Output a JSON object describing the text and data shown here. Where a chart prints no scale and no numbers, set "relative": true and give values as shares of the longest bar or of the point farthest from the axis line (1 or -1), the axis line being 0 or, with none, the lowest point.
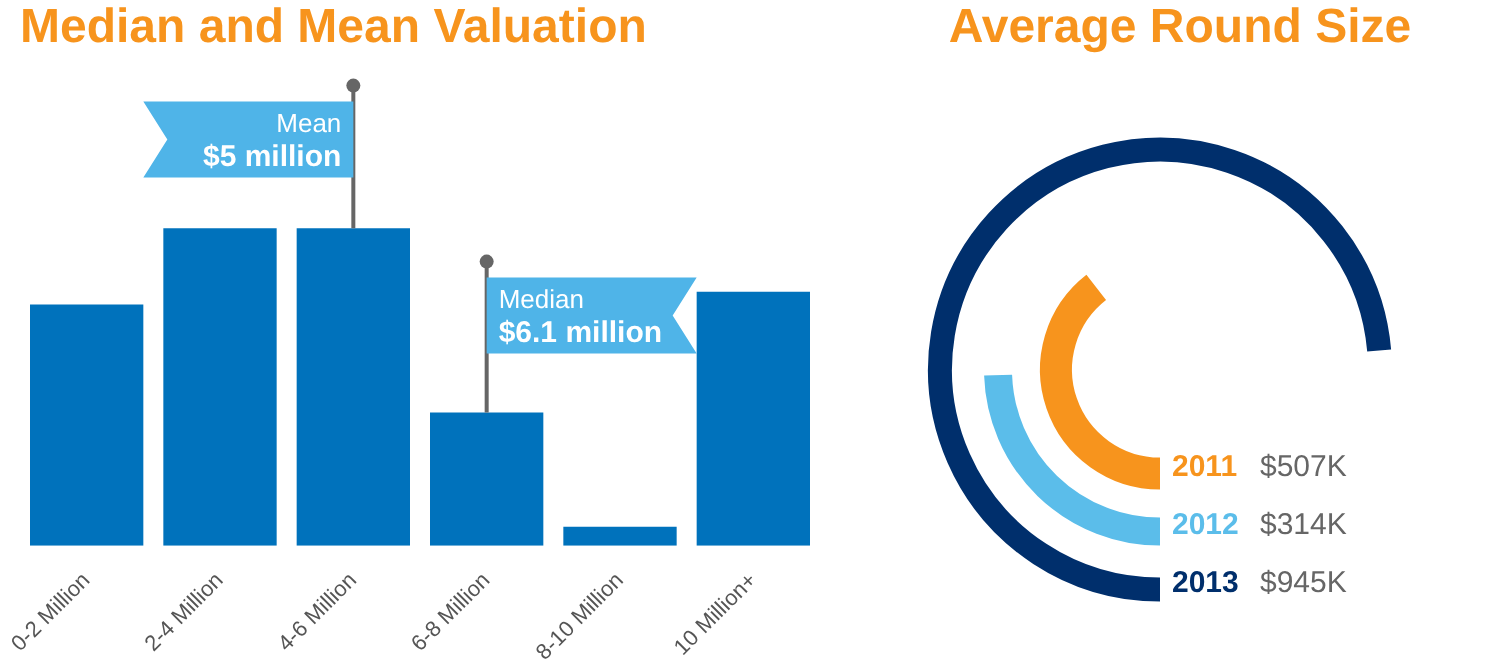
{
  "chart_data": [
    {
      "type": "bar",
      "title": "Median and Mean Valuation",
      "relative": true,
      "color": "#0072bc",
      "categories": [
        "0-2 Million",
        "2-4 Million",
        "4-6 Million",
        "6-8 Million",
        "8-10 Million",
        "10 Million+"
      ],
      "values": [
        0.76,
        1,
        1,
        0.42,
        0.06,
        0.8
      ],
      "annotations": [
        {
          "text": "Mean\n$5 million",
          "x": "4-6 Million",
          "y": 1
        },
        {
          "text": "Median\n$6.1 million",
          "x": "6-8 Million",
          "y": 0.42
        }
      ]
    },
    {
      "type": "other",
      "title": "Average Round Size",
      "categories": [
        "2011",
        "2012",
        "2013"
      ],
      "values": [
        507,
        314,
        945
      ],
      "colors": [
        "#f7941d",
        "#5bbdea",
        "#002f6c"
      ],
      "value_labels": [
        "$507K",
        "$314K",
        "$945K"
      ]
    }
  ]
}
